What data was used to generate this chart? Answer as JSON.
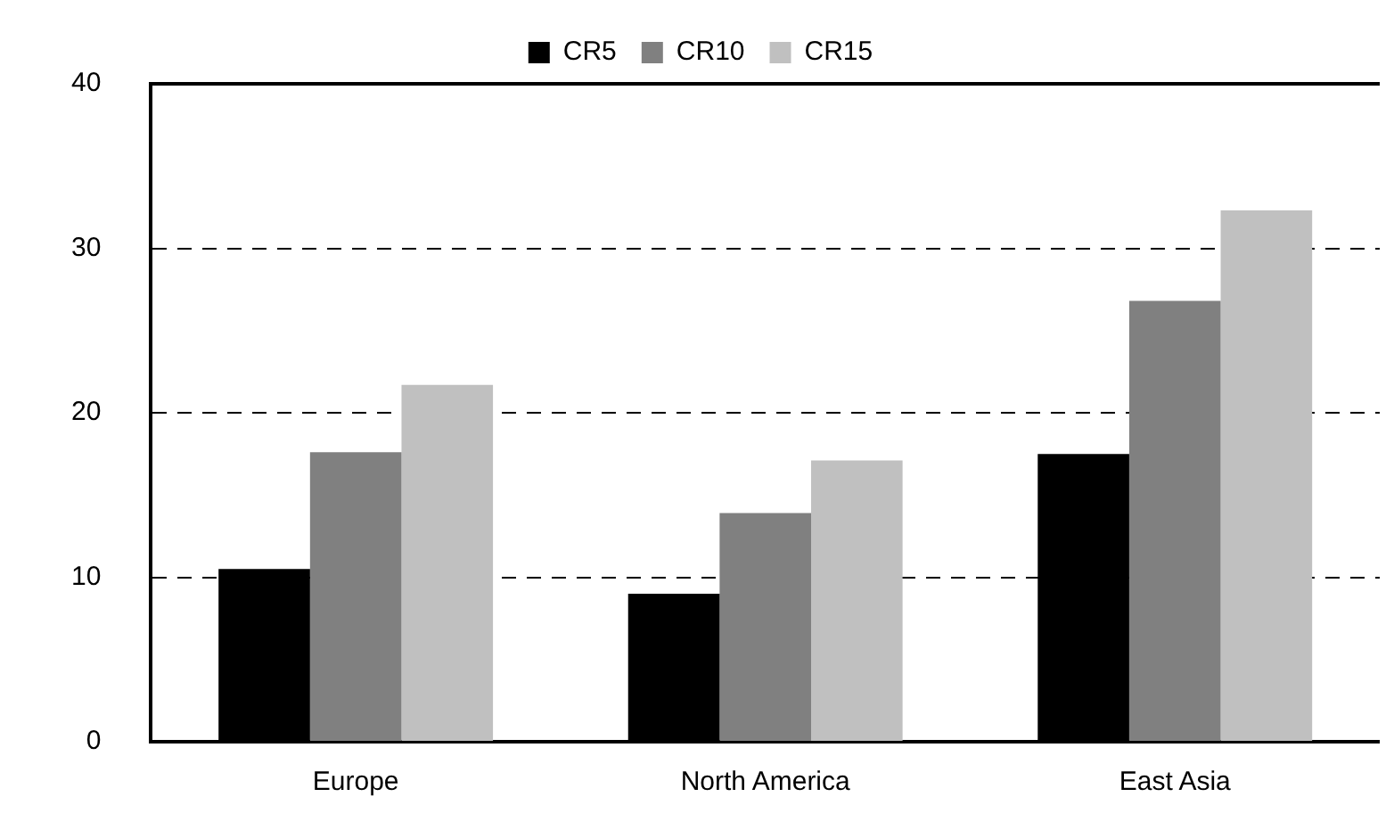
{
  "chart_data": {
    "type": "bar",
    "categories": [
      "Europe",
      "North America",
      "East Asia"
    ],
    "series": [
      {
        "name": "CR5",
        "color": "#000000",
        "values": [
          10.5,
          9.0,
          17.5
        ]
      },
      {
        "name": "CR10",
        "color": "#808080",
        "values": [
          17.6,
          13.9,
          26.8
        ]
      },
      {
        "name": "CR15",
        "color": "#c0c0c0",
        "values": [
          21.7,
          17.1,
          32.3
        ]
      }
    ],
    "ylim": [
      0,
      40
    ],
    "yticks": [
      0,
      10,
      20,
      30,
      40
    ],
    "grid": "y",
    "legend": "top"
  }
}
